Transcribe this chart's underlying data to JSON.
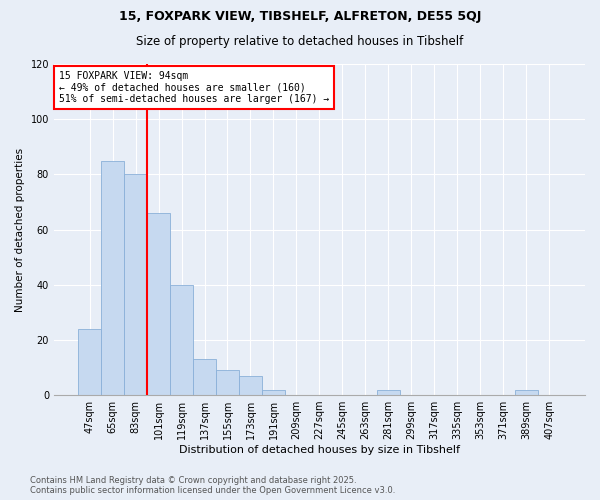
{
  "title1": "15, FOXPARK VIEW, TIBSHELF, ALFRETON, DE55 5QJ",
  "title2": "Size of property relative to detached houses in Tibshelf",
  "xlabel": "Distribution of detached houses by size in Tibshelf",
  "ylabel": "Number of detached properties",
  "categories": [
    "47sqm",
    "65sqm",
    "83sqm",
    "101sqm",
    "119sqm",
    "137sqm",
    "155sqm",
    "173sqm",
    "191sqm",
    "209sqm",
    "227sqm",
    "245sqm",
    "263sqm",
    "281sqm",
    "299sqm",
    "317sqm",
    "335sqm",
    "353sqm",
    "371sqm",
    "389sqm",
    "407sqm"
  ],
  "values": [
    24,
    85,
    80,
    66,
    40,
    13,
    9,
    7,
    2,
    0,
    0,
    0,
    0,
    2,
    0,
    0,
    0,
    0,
    0,
    2,
    0
  ],
  "bar_color": "#c6d9f0",
  "bar_edge_color": "#8ab0d8",
  "vline_x": 2.5,
  "vline_color": "red",
  "annotation_text": "15 FOXPARK VIEW: 94sqm\n← 49% of detached houses are smaller (160)\n51% of semi-detached houses are larger (167) →",
  "annotation_box_color": "white",
  "annotation_box_edge": "red",
  "footer": "Contains HM Land Registry data © Crown copyright and database right 2025.\nContains public sector information licensed under the Open Government Licence v3.0.",
  "ylim": [
    0,
    120
  ],
  "yticks": [
    0,
    20,
    40,
    60,
    80,
    100,
    120
  ],
  "background_color": "#e8eef7",
  "plot_background": "#e8eef7",
  "grid_color": "#ffffff",
  "title1_fontsize": 9,
  "title2_fontsize": 8.5,
  "xlabel_fontsize": 8,
  "ylabel_fontsize": 7.5,
  "tick_fontsize": 7,
  "annot_fontsize": 7,
  "footer_fontsize": 6
}
